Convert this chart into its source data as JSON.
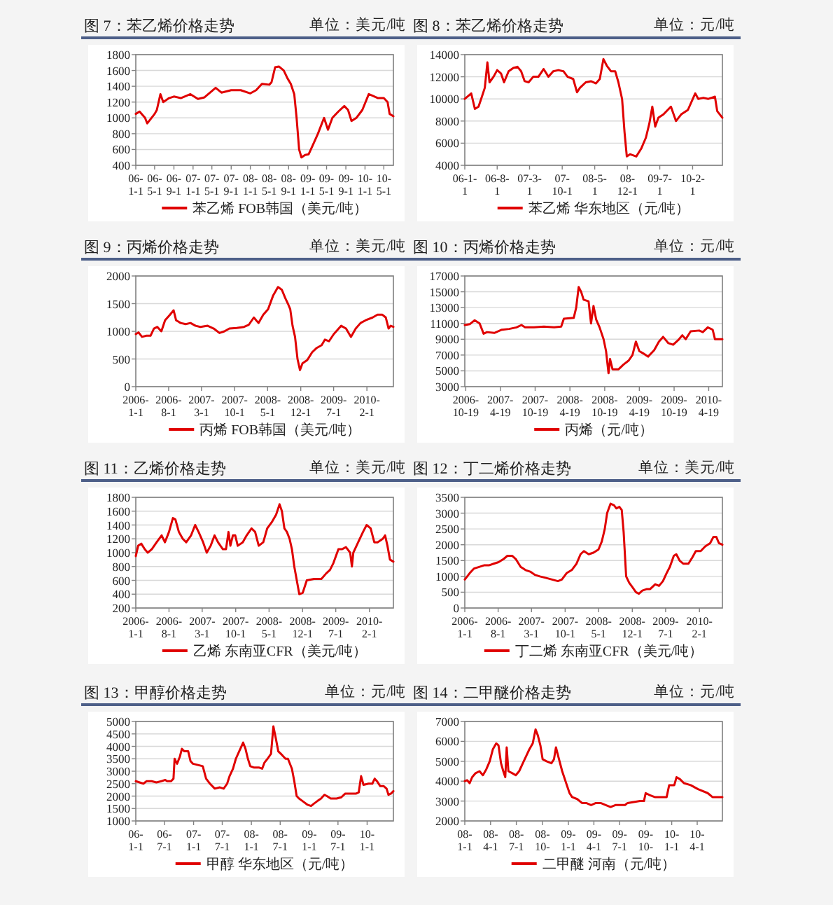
{
  "chart_data": [
    {
      "type": "line",
      "title": "图 7：苯乙烯价格走势",
      "subtitle": "单位：美元/吨",
      "grid": "y",
      "legend": "bottom",
      "x": [
        "2006-01-01",
        "2006-01-25",
        "2006-03-01",
        "2006-03-15",
        "2006-05-01",
        "2006-05-15",
        "2006-06-07",
        "2006-06-25",
        "2006-08-01",
        "2006-09-01",
        "2006-10-15",
        "2006-12-15",
        "2007-02-01",
        "2007-03-15",
        "2007-05-25",
        "2007-07-01",
        "2007-09-01",
        "2007-11-01",
        "2008-01-01",
        "2008-02-07",
        "2008-03-15",
        "2008-05-01",
        "2008-05-15",
        "2008-06-07",
        "2008-07-01",
        "2008-08-01",
        "2008-08-25",
        "2008-09-15",
        "2008-10-07",
        "2008-10-22",
        "2008-11-07",
        "2008-11-22",
        "2008-12-15",
        "2009-01-07",
        "2009-02-01",
        "2009-03-07",
        "2009-04-15",
        "2009-05-10",
        "2009-06-07",
        "2009-07-15",
        "2009-08-22",
        "2009-09-15",
        "2009-10-07",
        "2009-11-07",
        "2009-12-15",
        "2010-01-25",
        "2010-02-18",
        "2010-03-25",
        "2010-05-01",
        "2010-05-25",
        "2010-06-07",
        "2010-07-01"
      ],
      "series": [
        {
          "name": "苯乙烯 FOB韩国（美元/吨）",
          "color": "#e00000",
          "values": [
            1050,
            1080,
            1000,
            930,
            1050,
            1100,
            1300,
            1200,
            1250,
            1270,
            1250,
            1300,
            1240,
            1260,
            1380,
            1320,
            1350,
            1350,
            1310,
            1350,
            1430,
            1420,
            1450,
            1640,
            1650,
            1600,
            1500,
            1430,
            1300,
            1000,
            600,
            500,
            530,
            540,
            650,
            800,
            1000,
            850,
            1000,
            1080,
            1150,
            1100,
            960,
            1000,
            1100,
            1300,
            1280,
            1250,
            1250,
            1200,
            1050,
            1020
          ]
        }
      ],
      "xlim": [
        "2006-01-01",
        "2010-07-01"
      ],
      "ylim": [
        400,
        1800
      ],
      "yticks": [
        400,
        600,
        800,
        1000,
        1200,
        1400,
        1600,
        1800
      ],
      "xticks": [
        {
          "value": "2006-01-01",
          "label": "06-1-1"
        },
        {
          "value": "2006-05-01",
          "label": "06-5-1"
        },
        {
          "value": "2006-09-01",
          "label": "06-9-1"
        },
        {
          "value": "2007-01-01",
          "label": "07-1-1"
        },
        {
          "value": "2007-05-01",
          "label": "07-5-1"
        },
        {
          "value": "2007-09-01",
          "label": "07-9-1"
        },
        {
          "value": "2008-01-01",
          "label": "08-1-1"
        },
        {
          "value": "2008-05-01",
          "label": "08-5-1"
        },
        {
          "value": "2008-09-01",
          "label": "08-9-1"
        },
        {
          "value": "2009-01-01",
          "label": "09-1-1"
        },
        {
          "value": "2009-05-01",
          "label": "09-5-1"
        },
        {
          "value": "2009-09-01",
          "label": "09-9-1"
        },
        {
          "value": "2010-01-01",
          "label": "10-1-1"
        },
        {
          "value": "2010-05-01",
          "label": "10-5-1"
        }
      ]
    },
    {
      "type": "line",
      "title": "图 8：苯乙烯价格走势",
      "subtitle": "单位：元/吨",
      "grid": "y",
      "legend": "bottom",
      "x": [
        "2006-01-01",
        "2006-01-27",
        "2006-02-12",
        "2006-03-08",
        "2006-04-01",
        "2006-04-23",
        "2006-05-12",
        "2006-05-29",
        "2006-06-12",
        "2006-07-08",
        "2006-08-01",
        "2006-08-26",
        "2006-09-15",
        "2006-10-15",
        "2006-11-15",
        "2006-12-12",
        "2007-01-05",
        "2007-01-28",
        "2007-02-23",
        "2007-03-25",
        "2007-04-28",
        "2007-06-01",
        "2007-07-03",
        "2007-08-03",
        "2007-09-06",
        "2007-10-09",
        "2007-11-05",
        "2007-12-12",
        "2008-01-06",
        "2008-01-25",
        "2008-03-03",
        "2008-04-06",
        "2008-05-09",
        "2008-06-03",
        "2008-06-27",
        "2008-07-19",
        "2008-08-15",
        "2008-09-12",
        "2008-10-03",
        "2008-10-27",
        "2008-11-12",
        "2008-11-27",
        "2008-12-18",
        "2009-01-28",
        "2009-03-01",
        "2009-04-01",
        "2009-04-24",
        "2009-05-13",
        "2009-06-01",
        "2009-06-22",
        "2009-07-25",
        "2009-09-12",
        "2009-10-15",
        "2009-11-18",
        "2010-01-01",
        "2010-02-18",
        "2010-03-10",
        "2010-04-12",
        "2010-05-15",
        "2010-06-27",
        "2010-07-12",
        "2010-08-15"
      ],
      "series": [
        {
          "name": "苯乙烯 华东地区（元/吨）",
          "color": "#e00000",
          "values": [
            10000,
            10300,
            10500,
            9100,
            9300,
            10200,
            11000,
            13300,
            11500,
            12000,
            12600,
            12300,
            11500,
            12500,
            12800,
            12900,
            12500,
            11600,
            11500,
            12000,
            12000,
            12700,
            12000,
            12500,
            12600,
            12500,
            12000,
            11800,
            10600,
            11000,
            11500,
            11600,
            11400,
            11800,
            13600,
            13000,
            12500,
            12500,
            11500,
            10000,
            7000,
            4800,
            5000,
            4800,
            5500,
            6500,
            7800,
            9300,
            7500,
            8300,
            8600,
            9300,
            8000,
            8600,
            9000,
            10500,
            10000,
            10100,
            10000,
            10200,
            8900,
            8300
          ]
        }
      ],
      "xlim": [
        "2006-01-01",
        "2010-08-15"
      ],
      "ylim": [
        4000,
        14000
      ],
      "yticks": [
        4000,
        6000,
        8000,
        10000,
        12000,
        14000
      ],
      "xticks": [
        {
          "value": "2006-01-01",
          "label": "06-1-1"
        },
        {
          "value": "2006-08-01",
          "label": "06-8-1"
        },
        {
          "value": "2007-03-01",
          "label": "07-3-1"
        },
        {
          "value": "2007-10-01",
          "label": "07-10-1"
        },
        {
          "value": "2008-05-01",
          "label": "08-5-1"
        },
        {
          "value": "2008-12-01",
          "label": "08-12-1"
        },
        {
          "value": "2009-07-01",
          "label": "09-7-1"
        },
        {
          "value": "2010-02-01",
          "label": "10-2-1"
        }
      ]
    },
    {
      "type": "line",
      "title": "图 9：丙烯价格走势",
      "subtitle": "单位：美元/吨",
      "grid": "y",
      "legend": "bottom",
      "x": [
        "2006-01-01",
        "2006-01-19",
        "2006-02-10",
        "2006-03-11",
        "2006-04-06",
        "2006-04-28",
        "2006-05-20",
        "2006-06-15",
        "2006-07-09",
        "2006-08-10",
        "2006-09-02",
        "2006-09-18",
        "2006-10-18",
        "2006-11-19",
        "2006-12-20",
        "2007-01-22",
        "2007-02-22",
        "2007-04-10",
        "2007-05-19",
        "2007-06-25",
        "2007-07-27",
        "2007-08-28",
        "2007-10-13",
        "2007-12-01",
        "2008-01-01",
        "2008-02-02",
        "2008-03-03",
        "2008-04-03",
        "2008-05-04",
        "2008-06-06",
        "2008-07-07",
        "2008-08-01",
        "2008-08-23",
        "2008-09-09",
        "2008-09-24",
        "2008-10-09",
        "2008-10-25",
        "2008-11-10",
        "2008-11-26",
        "2008-12-12",
        "2009-01-12",
        "2009-02-12",
        "2009-03-14",
        "2009-04-15",
        "2009-05-06",
        "2009-06-01",
        "2009-07-02",
        "2009-08-19",
        "2009-09-19",
        "2009-10-21",
        "2009-11-21",
        "2009-12-22",
        "2010-01-24",
        "2010-03-10",
        "2010-04-10",
        "2010-05-12",
        "2010-06-03",
        "2010-06-21",
        "2010-07-04",
        "2010-07-22"
      ],
      "series": [
        {
          "name": "丙烯 FOB韩国（美元/吨）",
          "color": "#e00000",
          "values": [
            950,
            980,
            900,
            920,
            920,
            1050,
            1080,
            1000,
            1200,
            1300,
            1380,
            1200,
            1150,
            1130,
            1150,
            1100,
            1080,
            1100,
            1050,
            970,
            1000,
            1050,
            1060,
            1080,
            1120,
            1250,
            1150,
            1300,
            1400,
            1650,
            1800,
            1750,
            1600,
            1500,
            1400,
            1100,
            900,
            500,
            300,
            420,
            480,
            620,
            700,
            750,
            850,
            820,
            950,
            1100,
            1050,
            900,
            1050,
            1150,
            1200,
            1250,
            1300,
            1300,
            1250,
            1050,
            1100,
            1080
          ]
        }
      ],
      "xlim": [
        "2006-01-01",
        "2010-07-22"
      ],
      "ylim": [
        0,
        2000
      ],
      "yticks": [
        0,
        500,
        1000,
        1500,
        2000
      ],
      "xticks": [
        {
          "value": "2006-01-01",
          "label": "2006-1-1"
        },
        {
          "value": "2006-08-01",
          "label": "2006-8-1"
        },
        {
          "value": "2007-03-01",
          "label": "2007-3-1"
        },
        {
          "value": "2007-10-01",
          "label": "2007-10-1"
        },
        {
          "value": "2008-05-01",
          "label": "2008-5-1"
        },
        {
          "value": "2008-12-01",
          "label": "2008-12-1"
        },
        {
          "value": "2009-07-01",
          "label": "2009-7-1"
        },
        {
          "value": "2010-02-01",
          "label": "2010-2-1"
        }
      ]
    },
    {
      "type": "line",
      "title": "图 10：丙烯价格走势",
      "subtitle": "单位：元/吨",
      "grid": "y",
      "legend": "bottom",
      "x": [
        "2006-10-14",
        "2006-11-09",
        "2006-12-05",
        "2006-12-31",
        "2007-01-21",
        "2007-02-08",
        "2007-03-18",
        "2007-04-27",
        "2007-06-04",
        "2007-07-13",
        "2007-08-08",
        "2007-08-27",
        "2007-10-13",
        "2007-12-04",
        "2008-01-27",
        "2008-03-04",
        "2008-03-18",
        "2008-05-09",
        "2008-05-22",
        "2008-06-04",
        "2008-06-17",
        "2008-06-30",
        "2008-07-26",
        "2008-08-08",
        "2008-08-21",
        "2008-09-04",
        "2008-09-22",
        "2008-10-13",
        "2008-10-26",
        "2008-11-08",
        "2008-11-16",
        "2008-11-29",
        "2008-12-31",
        "2009-01-26",
        "2009-02-22",
        "2009-03-14",
        "2009-04-01",
        "2009-04-19",
        "2009-05-10",
        "2009-06-04",
        "2009-07-06",
        "2009-07-31",
        "2009-08-22",
        "2009-09-19",
        "2009-10-14",
        "2009-11-10",
        "2009-12-01",
        "2009-12-19",
        "2010-01-14",
        "2010-02-28",
        "2010-03-19",
        "2010-04-14",
        "2010-05-10",
        "2010-05-22",
        "2010-06-30"
      ],
      "series": [
        {
          "name": "丙烯（元/吨）",
          "color": "#e00000",
          "values": [
            10800,
            10900,
            11400,
            11000,
            9700,
            9900,
            9800,
            10200,
            10300,
            10500,
            10800,
            10500,
            10500,
            10600,
            10500,
            10600,
            11600,
            11700,
            13000,
            15600,
            15000,
            14000,
            13800,
            11000,
            13200,
            11500,
            10500,
            9000,
            7500,
            4700,
            6500,
            5200,
            5200,
            5800,
            6300,
            7000,
            8700,
            7500,
            7200,
            6800,
            7600,
            8700,
            9300,
            8500,
            8300,
            8900,
            9500,
            9000,
            10000,
            10100,
            9900,
            10500,
            10200,
            9000,
            9000
          ]
        }
      ],
      "xlim": [
        "2006-10-14",
        "2010-06-30"
      ],
      "ylim": [
        3000,
        17000
      ],
      "yticks": [
        3000,
        5000,
        7000,
        9000,
        11000,
        13000,
        15000,
        17000
      ],
      "xticks": [
        {
          "value": "2006-10-19",
          "label": "2006-10-19"
        },
        {
          "value": "2007-04-19",
          "label": "2007-4-19"
        },
        {
          "value": "2007-10-19",
          "label": "2007-10-19"
        },
        {
          "value": "2008-04-19",
          "label": "2008-4-19"
        },
        {
          "value": "2008-10-19",
          "label": "2008-10-19"
        },
        {
          "value": "2009-04-19",
          "label": "2009-4-19"
        },
        {
          "value": "2009-10-19",
          "label": "2009-10-19"
        },
        {
          "value": "2010-04-19",
          "label": "2010-4-19"
        }
      ]
    },
    {
      "type": "line",
      "title": "图 11：乙烯价格走势",
      "subtitle": "单位：美元/吨",
      "grid": "y",
      "legend": "bottom",
      "x": [
        "2006-01-01",
        "2006-01-16",
        "2006-02-05",
        "2006-02-27",
        "2006-03-18",
        "2006-04-13",
        "2006-05-14",
        "2006-06-15",
        "2006-07-06",
        "2006-08-01",
        "2006-08-26",
        "2006-09-11",
        "2006-10-03",
        "2006-10-28",
        "2006-11-19",
        "2006-12-20",
        "2007-01-15",
        "2007-02-06",
        "2007-03-07",
        "2007-03-30",
        "2007-04-24",
        "2007-05-19",
        "2007-06-10",
        "2007-07-11",
        "2007-07-31",
        "2007-08-16",
        "2007-08-28",
        "2007-09-13",
        "2007-09-28",
        "2007-10-14",
        "2007-11-15",
        "2007-12-10",
        "2008-01-10",
        "2008-02-02",
        "2008-02-25",
        "2008-03-25",
        "2008-04-19",
        "2008-05-21",
        "2008-06-15",
        "2008-07-07",
        "2008-07-22",
        "2008-08-07",
        "2008-08-23",
        "2008-09-09",
        "2008-09-24",
        "2008-10-09",
        "2008-10-25",
        "2008-11-10",
        "2008-12-02",
        "2008-12-28",
        "2009-02-12",
        "2009-03-31",
        "2009-05-01",
        "2009-05-25",
        "2009-06-16",
        "2009-07-18",
        "2009-08-09",
        "2009-09-04",
        "2009-10-01",
        "2009-10-12",
        "2009-10-21",
        "2009-11-21",
        "2009-12-22",
        "2010-01-14",
        "2010-02-09",
        "2010-03-04",
        "2010-03-25",
        "2010-04-27",
        "2010-05-12",
        "2010-05-27",
        "2010-06-12",
        "2010-07-04"
      ],
      "series": [
        {
          "name": "乙烯 东南亚CFR（美元/吨）",
          "color": "#e00000",
          "values": [
            950,
            1100,
            1130,
            1050,
            1000,
            1050,
            1150,
            1250,
            1150,
            1300,
            1500,
            1480,
            1300,
            1200,
            1150,
            1250,
            1400,
            1300,
            1150,
            1000,
            1100,
            1250,
            1150,
            1050,
            1050,
            1300,
            1100,
            1250,
            1250,
            1100,
            1150,
            1250,
            1350,
            1300,
            1100,
            1150,
            1350,
            1450,
            1550,
            1700,
            1600,
            1350,
            1300,
            1200,
            1050,
            800,
            600,
            400,
            420,
            600,
            620,
            620,
            700,
            750,
            850,
            1050,
            1050,
            1080,
            1000,
            800,
            1000,
            1150,
            1300,
            1400,
            1350,
            1150,
            1150,
            1200,
            1250,
            1100,
            900,
            870
          ]
        }
      ],
      "xlim": [
        "2006-01-01",
        "2010-07-04"
      ],
      "ylim": [
        200,
        1800
      ],
      "yticks": [
        200,
        400,
        600,
        800,
        1000,
        1200,
        1400,
        1600,
        1800
      ],
      "xticks": [
        {
          "value": "2006-01-01",
          "label": "2006-1-1"
        },
        {
          "value": "2006-08-01",
          "label": "2006-8-1"
        },
        {
          "value": "2007-03-01",
          "label": "2007-3-1"
        },
        {
          "value": "2007-10-01",
          "label": "2007-10-1"
        },
        {
          "value": "2008-05-01",
          "label": "2008-5-1"
        },
        {
          "value": "2008-12-01",
          "label": "2008-12-1"
        },
        {
          "value": "2009-07-01",
          "label": "2009-7-1"
        },
        {
          "value": "2010-02-01",
          "label": "2010-2-1"
        }
      ]
    },
    {
      "type": "line",
      "title": "图 12：丁二烯价格走势",
      "subtitle": "单位：美元/吨",
      "grid": "y",
      "legend": "bottom",
      "x": [
        "2006-01-01",
        "2006-02-01",
        "2006-03-01",
        "2006-04-02",
        "2006-05-03",
        "2006-06-03",
        "2006-07-04",
        "2006-08-04",
        "2006-09-05",
        "2006-09-29",
        "2006-10-30",
        "2006-11-21",
        "2006-12-22",
        "2007-01-22",
        "2007-02-21",
        "2007-03-22",
        "2007-04-23",
        "2007-06-03",
        "2007-07-10",
        "2007-08-16",
        "2007-09-10",
        "2007-10-10",
        "2007-11-12",
        "2007-12-12",
        "2008-01-07",
        "2008-01-28",
        "2008-02-28",
        "2008-03-29",
        "2008-04-30",
        "2008-05-21",
        "2008-06-09",
        "2008-06-24",
        "2008-07-16",
        "2008-08-07",
        "2008-08-22",
        "2008-09-10",
        "2008-09-25",
        "2008-10-07",
        "2008-10-23",
        "2008-11-11",
        "2008-12-03",
        "2008-12-24",
        "2009-01-12",
        "2009-02-03",
        "2009-03-04",
        "2009-03-25",
        "2009-04-26",
        "2009-05-20",
        "2009-06-14",
        "2009-07-07",
        "2009-07-28",
        "2009-08-22",
        "2009-09-07",
        "2009-09-28",
        "2009-10-22",
        "2009-11-23",
        "2009-12-18",
        "2010-01-09",
        "2010-02-09",
        "2010-03-10",
        "2010-04-10",
        "2010-05-01",
        "2010-05-19",
        "2010-06-05",
        "2010-06-27"
      ],
      "series": [
        {
          "name": "丁二烯 东南亚CFR（美元/吨）",
          "color": "#e00000",
          "values": [
            900,
            1100,
            1250,
            1300,
            1350,
            1350,
            1400,
            1450,
            1550,
            1650,
            1650,
            1550,
            1300,
            1200,
            1150,
            1050,
            1000,
            950,
            900,
            850,
            900,
            1100,
            1200,
            1400,
            1700,
            1800,
            1700,
            1750,
            1850,
            2100,
            2500,
            3000,
            3300,
            3250,
            3150,
            3200,
            3100,
            2400,
            1000,
            800,
            650,
            500,
            450,
            550,
            600,
            600,
            750,
            700,
            850,
            1100,
            1300,
            1650,
            1700,
            1500,
            1400,
            1400,
            1600,
            1800,
            1800,
            1950,
            2050,
            2250,
            2250,
            2050,
            2000
          ]
        }
      ],
      "xlim": [
        "2006-01-01",
        "2010-06-27"
      ],
      "ylim": [
        0,
        3500
      ],
      "yticks": [
        0,
        500,
        1000,
        1500,
        2000,
        2500,
        3000,
        3500
      ],
      "xticks": [
        {
          "value": "2006-01-01",
          "label": "2006-1-1"
        },
        {
          "value": "2006-08-01",
          "label": "2006-8-1"
        },
        {
          "value": "2007-03-01",
          "label": "2007-3-1"
        },
        {
          "value": "2007-10-01",
          "label": "2007-10-1"
        },
        {
          "value": "2008-05-01",
          "label": "2008-5-1"
        },
        {
          "value": "2008-12-01",
          "label": "2008-12-1"
        },
        {
          "value": "2009-07-01",
          "label": "2009-7-1"
        },
        {
          "value": "2010-02-01",
          "label": "2010-2-1"
        }
      ]
    },
    {
      "type": "line",
      "title": "图 13：甲醇价格走势",
      "subtitle": "单位：元/吨",
      "grid": "y",
      "legend": "bottom",
      "x": [
        "2006-01-01",
        "2006-01-25",
        "2006-02-18",
        "2006-03-10",
        "2006-04-11",
        "2006-05-11",
        "2006-06-12",
        "2006-07-06",
        "2006-07-18",
        "2006-08-12",
        "2006-08-27",
        "2006-09-03",
        "2006-09-19",
        "2006-10-07",
        "2006-10-19",
        "2006-11-04",
        "2006-11-28",
        "2006-12-13",
        "2006-12-28",
        "2007-01-29",
        "2007-02-28",
        "2007-03-21",
        "2007-04-14",
        "2007-05-15",
        "2007-06-16",
        "2007-07-10",
        "2007-08-01",
        "2007-08-16",
        "2007-09-07",
        "2007-09-25",
        "2007-10-16",
        "2007-11-10",
        "2007-11-25",
        "2007-12-10",
        "2007-12-25",
        "2008-01-16",
        "2008-02-17",
        "2008-03-09",
        "2008-03-24",
        "2008-04-12",
        "2008-05-04",
        "2008-05-19",
        "2008-06-04",
        "2008-06-19",
        "2008-07-13",
        "2008-08-04",
        "2008-08-19",
        "2008-09-13",
        "2008-09-28",
        "2008-10-13",
        "2008-10-28",
        "2008-11-19",
        "2008-12-21",
        "2009-01-12",
        "2009-01-31",
        "2009-02-21",
        "2009-03-16",
        "2009-04-06",
        "2009-04-22",
        "2009-05-16",
        "2009-06-22",
        "2009-07-22",
        "2009-08-16",
        "2009-09-22",
        "2009-10-24",
        "2009-11-09",
        "2009-11-24",
        "2009-12-09",
        "2010-01-10",
        "2010-02-03",
        "2010-02-18",
        "2010-03-04",
        "2010-03-25",
        "2010-04-16",
        "2010-05-04",
        "2010-05-16",
        "2010-06-01",
        "2010-06-16"
      ],
      "series": [
        {
          "name": "甲醇 华东地区（元/吨）",
          "color": "#e00000",
          "values": [
            2600,
            2550,
            2500,
            2600,
            2600,
            2550,
            2600,
            2650,
            2600,
            2600,
            2700,
            3500,
            3300,
            3600,
            3900,
            3800,
            3800,
            3400,
            3300,
            3250,
            3200,
            2700,
            2500,
            2300,
            2350,
            2300,
            2500,
            2800,
            3100,
            3500,
            3800,
            4150,
            3900,
            3500,
            3200,
            3150,
            3150,
            3100,
            3350,
            3500,
            3700,
            4800,
            4300,
            3800,
            3650,
            3500,
            3500,
            3100,
            2600,
            2000,
            1900,
            1800,
            1650,
            1600,
            1700,
            1800,
            1900,
            2050,
            2000,
            1900,
            1900,
            1950,
            2100,
            2100,
            2100,
            2150,
            2800,
            2450,
            2500,
            2500,
            2700,
            2600,
            2400,
            2400,
            2300,
            2050,
            2100,
            2200
          ]
        }
      ],
      "xlim": [
        "2006-01-01",
        "2010-06-16"
      ],
      "ylim": [
        1000,
        5000
      ],
      "yticks": [
        1000,
        1500,
        2000,
        2500,
        3000,
        3500,
        4000,
        4500,
        5000
      ],
      "xticks": [
        {
          "value": "2006-01-01",
          "label": "06-1-1"
        },
        {
          "value": "2006-07-01",
          "label": "06-7-1"
        },
        {
          "value": "2007-01-01",
          "label": "07-1-1"
        },
        {
          "value": "2007-07-01",
          "label": "07-7-1"
        },
        {
          "value": "2008-01-01",
          "label": "08-1-1"
        },
        {
          "value": "2008-07-01",
          "label": "08-7-1"
        },
        {
          "value": "2009-01-01",
          "label": "09-1-1"
        },
        {
          "value": "2009-07-01",
          "label": "09-7-1"
        },
        {
          "value": "2010-01-01",
          "label": "10-1-1"
        }
      ]
    },
    {
      "type": "line",
      "title": "图 14：二甲醚价格走势",
      "subtitle": "单位：元/吨",
      "grid": "y",
      "legend": "bottom",
      "x": [
        "2008-01-01",
        "2008-01-09",
        "2008-01-18",
        "2008-01-27",
        "2008-02-08",
        "2008-02-22",
        "2008-03-05",
        "2008-03-17",
        "2008-03-29",
        "2008-04-09",
        "2008-04-21",
        "2008-04-29",
        "2008-05-08",
        "2008-05-16",
        "2008-05-23",
        "2008-05-28",
        "2008-06-03",
        "2008-06-17",
        "2008-06-29",
        "2008-07-11",
        "2008-07-24",
        "2008-08-06",
        "2008-08-16",
        "2008-08-28",
        "2008-09-07",
        "2008-09-15",
        "2008-09-24",
        "2008-10-02",
        "2008-10-16",
        "2008-11-02",
        "2008-11-11",
        "2008-11-18",
        "2008-11-27",
        "2008-12-10",
        "2008-12-24",
        "2009-01-05",
        "2009-01-14",
        "2009-02-01",
        "2009-02-18",
        "2009-03-05",
        "2009-03-22",
        "2009-04-08",
        "2009-04-25",
        "2009-05-13",
        "2009-05-30",
        "2009-06-16",
        "2009-07-20",
        "2009-07-29",
        "2009-09-11",
        "2009-09-25",
        "2009-10-01",
        "2009-10-15",
        "2009-11-02",
        "2009-12-14",
        "2009-12-23",
        "2010-01-10",
        "2010-01-18",
        "2010-01-30",
        "2010-02-13",
        "2010-03-09",
        "2010-04-04",
        "2010-05-08",
        "2010-05-25",
        "2010-06-29"
      ],
      "series": [
        {
          "name": "二甲醚 河南（元/吨）",
          "color": "#e00000",
          "values": [
            4000,
            4050,
            3900,
            4200,
            4400,
            4500,
            4300,
            4600,
            5000,
            5600,
            5900,
            5800,
            4900,
            4500,
            4200,
            5700,
            4500,
            4400,
            4300,
            4500,
            4900,
            5300,
            5600,
            5900,
            6600,
            6300,
            5800,
            5100,
            5000,
            4900,
            5100,
            5700,
            5200,
            4500,
            3900,
            3400,
            3200,
            3100,
            2900,
            2900,
            2800,
            2900,
            2900,
            2800,
            2700,
            2800,
            2800,
            2900,
            3000,
            3000,
            3400,
            3300,
            3200,
            3200,
            3800,
            3800,
            4200,
            4100,
            3900,
            3800,
            3600,
            3400,
            3200,
            3200
          ]
        }
      ],
      "xlim": [
        "2008-01-01",
        "2010-06-29"
      ],
      "ylim": [
        2000,
        7000
      ],
      "yticks": [
        2000,
        3000,
        4000,
        5000,
        6000,
        7000
      ],
      "xticks": [
        {
          "value": "2008-01-01",
          "label": "08-1-1"
        },
        {
          "value": "2008-04-01",
          "label": "08-4-1"
        },
        {
          "value": "2008-07-01",
          "label": "08-7-1"
        },
        {
          "value": "2008-10-01",
          "label": "08-10-"
        },
        {
          "value": "2009-01-01",
          "label": "09-1-1"
        },
        {
          "value": "2009-04-01",
          "label": "09-4-1"
        },
        {
          "value": "2009-07-01",
          "label": "09-7-1"
        },
        {
          "value": "2009-10-01",
          "label": "09-10-"
        },
        {
          "value": "2010-01-01",
          "label": "10-1-1"
        },
        {
          "value": "2010-04-01",
          "label": "10-4-1"
        }
      ]
    }
  ]
}
